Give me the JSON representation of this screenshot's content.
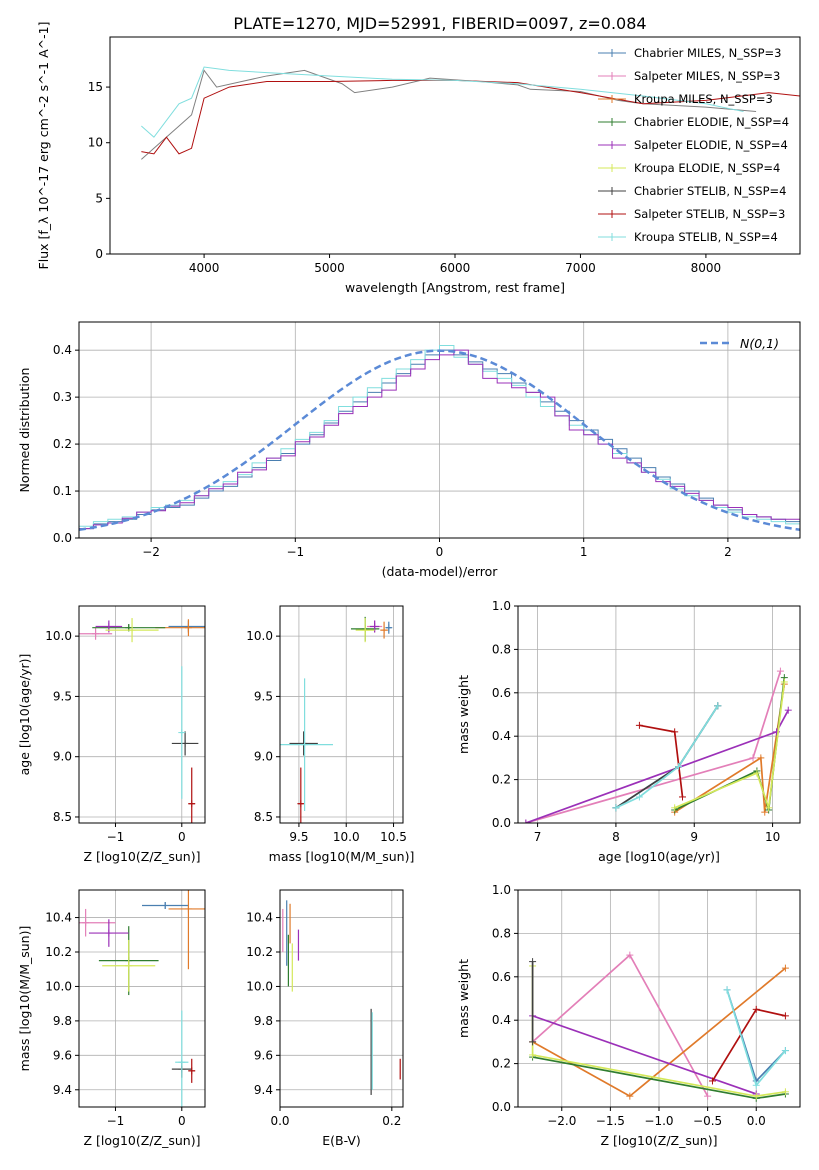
{
  "figure": {
    "title": "PLATE=1270, MJD=52991, FIBERID=0097, z=0.084"
  },
  "colors": {
    "Chabrier MILES": "#4a7fb0",
    "Salpeter MILES": "#e37fb8",
    "Kroupa MILES": "#e07a2a",
    "Chabrier ELODIE": "#2f7d2f",
    "Salpeter ELODIE": "#9b30b8",
    "Kroupa ELODIE": "#d4e85a",
    "Chabrier STELIB": "#404040",
    "Salpeter STELIB": "#b01010",
    "Kroupa STELIB": "#80dede",
    "data": "#808080",
    "normal": "#5b8ad6"
  },
  "chart_data": [
    {
      "type": "line",
      "xlabel": "wavelength [Angstrom, rest frame]",
      "ylabel": "Flux [f_λ 10^-17 erg cm^-2 s^-1 A^-1]",
      "xlim": [
        3250,
        8750
      ],
      "ylim": [
        0,
        19.5
      ],
      "xticks": [
        4000,
        5000,
        6000,
        7000,
        8000
      ],
      "yticks": [
        0,
        5,
        10,
        15
      ],
      "grid": false,
      "legend_position": "right",
      "legend": [
        "Chabrier MILES, N_SSP=3",
        "Salpeter MILES, N_SSP=3",
        "Kroupa MILES, N_SSP=3",
        "Chabrier ELODIE, N_SSP=4",
        "Salpeter ELODIE, N_SSP=4",
        "Kroupa ELODIE, N_SSP=4",
        "Chabrier STELIB, N_SSP=4",
        "Salpeter STELIB, N_SSP=3",
        "Kroupa STELIB, N_SSP=4"
      ],
      "series": [
        {
          "name": "data (gray)",
          "x": [
            3500,
            3700,
            3900,
            4000,
            4100,
            4300,
            4500,
            4800,
            5100,
            5200,
            5500,
            5800,
            6200,
            6500,
            6600,
            7000,
            7300,
            7500,
            8000,
            8400
          ],
          "y": [
            8.5,
            10.5,
            12.5,
            16.5,
            15.0,
            15.5,
            16.0,
            16.5,
            15.3,
            14.5,
            15.0,
            15.8,
            15.5,
            15.2,
            14.8,
            14.6,
            13.8,
            13.5,
            13.2,
            12.8
          ]
        },
        {
          "name": "Salpeter STELIB, N_SSP=3",
          "x": [
            3500,
            3600,
            3700,
            3800,
            3900,
            4000,
            4200,
            4500,
            5000,
            5500,
            6000,
            6500,
            7000,
            7500,
            8000,
            8500,
            8750
          ],
          "y": [
            9.2,
            9.0,
            10.5,
            9.0,
            9.5,
            14.0,
            15.0,
            15.5,
            15.5,
            15.6,
            15.6,
            15.4,
            14.5,
            13.5,
            13.8,
            14.5,
            14.2
          ]
        },
        {
          "name": "Kroupa STELIB, N_SSP=4",
          "x": [
            3500,
            3600,
            3700,
            3800,
            3900,
            4000,
            4200,
            4500,
            5000,
            5500,
            6000,
            6500,
            7000,
            7500,
            8000,
            8300
          ],
          "y": [
            11.5,
            10.5,
            12.0,
            13.5,
            14.0,
            16.8,
            16.5,
            16.3,
            16.0,
            15.7,
            15.6,
            15.3,
            14.8,
            14.2,
            13.5,
            12.8
          ]
        }
      ]
    },
    {
      "type": "step",
      "xlabel": "(data-model)/error",
      "ylabel": "Normed distribution",
      "xlim": [
        -2.5,
        2.5
      ],
      "ylim": [
        0,
        0.46
      ],
      "xticks": [
        -2,
        -1,
        0,
        1,
        2
      ],
      "yticks": [
        0.0,
        0.1,
        0.2,
        0.3,
        0.4
      ],
      "grid": true,
      "legend_position": "top-right",
      "legend": [
        "N(0,1)"
      ],
      "bin_width": 0.1,
      "bins_from": -2.5,
      "series": [
        {
          "name": "Chabrier MILES",
          "values": [
            0.02,
            0.03,
            0.035,
            0.04,
            0.05,
            0.06,
            0.065,
            0.07,
            0.085,
            0.1,
            0.11,
            0.13,
            0.15,
            0.165,
            0.18,
            0.2,
            0.22,
            0.245,
            0.27,
            0.29,
            0.31,
            0.33,
            0.35,
            0.37,
            0.39,
            0.4,
            0.39,
            0.375,
            0.36,
            0.35,
            0.33,
            0.31,
            0.29,
            0.27,
            0.25,
            0.23,
            0.21,
            0.19,
            0.17,
            0.15,
            0.13,
            0.115,
            0.1,
            0.085,
            0.07,
            0.06,
            0.05,
            0.045,
            0.04,
            0.035
          ]
        },
        {
          "name": "Kroupa STELIB",
          "values": [
            0.025,
            0.035,
            0.04,
            0.045,
            0.055,
            0.065,
            0.07,
            0.08,
            0.09,
            0.11,
            0.12,
            0.135,
            0.16,
            0.17,
            0.19,
            0.21,
            0.225,
            0.25,
            0.28,
            0.3,
            0.32,
            0.34,
            0.36,
            0.38,
            0.4,
            0.41,
            0.385,
            0.37,
            0.355,
            0.34,
            0.325,
            0.3,
            0.28,
            0.26,
            0.24,
            0.22,
            0.2,
            0.18,
            0.16,
            0.14,
            0.125,
            0.105,
            0.09,
            0.08,
            0.065,
            0.055,
            0.045,
            0.04,
            0.035,
            0.03
          ]
        },
        {
          "name": "Salpeter ELODIE",
          "values": [
            0.02,
            0.028,
            0.032,
            0.042,
            0.055,
            0.058,
            0.068,
            0.075,
            0.09,
            0.105,
            0.115,
            0.14,
            0.145,
            0.17,
            0.175,
            0.205,
            0.215,
            0.24,
            0.265,
            0.28,
            0.3,
            0.315,
            0.345,
            0.36,
            0.38,
            0.39,
            0.4,
            0.37,
            0.34,
            0.33,
            0.32,
            0.31,
            0.3,
            0.26,
            0.23,
            0.22,
            0.2,
            0.17,
            0.16,
            0.14,
            0.12,
            0.11,
            0.095,
            0.08,
            0.07,
            0.065,
            0.05,
            0.045,
            0.04,
            0.04
          ]
        }
      ],
      "normal_curve": {
        "name": "N(0,1)",
        "mean": 0,
        "sigma": 1
      }
    },
    {
      "type": "scatter",
      "title": "",
      "xlabel": "Z [log10(Z/Z_sun)]",
      "ylabel": "age  [log10(age/yr)]",
      "xlim": [
        -1.55,
        0.35
      ],
      "ylim": [
        8.45,
        10.25
      ],
      "xticks": [
        -1,
        0
      ],
      "yticks": [
        8.5,
        9.0,
        9.5,
        10.0
      ],
      "grid": true,
      "errorbars": [
        {
          "series": "Chabrier MILES",
          "x": 0.1,
          "y": 10.08,
          "xerr": 0.3,
          "yerr": 0.05
        },
        {
          "series": "Salpeter MILES",
          "x": -1.3,
          "y": 10.02,
          "xerr": 0.25,
          "yerr": 0.05
        },
        {
          "series": "Kroupa MILES",
          "x": 0.1,
          "y": 10.07,
          "xerr": 0.5,
          "yerr": 0.07
        },
        {
          "series": "Chabrier ELODIE",
          "x": -0.8,
          "y": 10.07,
          "xerr": 0.55,
          "yerr": 0.03
        },
        {
          "series": "Salpeter ELODIE",
          "x": -1.1,
          "y": 10.08,
          "xerr": 0.2,
          "yerr": 0.05
        },
        {
          "series": "Kroupa ELODIE",
          "x": -0.75,
          "y": 10.05,
          "xerr": 0.4,
          "yerr": 0.1
        },
        {
          "series": "Chabrier STELIB",
          "x": 0.05,
          "y": 9.11,
          "xerr": 0.2,
          "yerr": 0.1
        },
        {
          "series": "Salpeter STELIB",
          "x": 0.15,
          "y": 8.61,
          "xerr": 0.05,
          "yerr": 0.3
        },
        {
          "series": "Kroupa STELIB",
          "x": 0.0,
          "y": 9.2,
          "xerr": 0.02,
          "yerr": 0.55
        }
      ]
    },
    {
      "type": "scatter",
      "xlabel": "mass [log10(M/M_sun)]",
      "ylabel": "",
      "xlim": [
        9.3,
        10.6
      ],
      "ylim": [
        8.45,
        10.25
      ],
      "xticks": [
        9.5,
        10.0,
        10.5
      ],
      "yticks": [
        8.5,
        9.0,
        9.5,
        10.0
      ],
      "grid": true,
      "errorbars": [
        {
          "series": "Chabrier MILES",
          "x": 10.45,
          "y": 10.07,
          "xerr": 0.03,
          "yerr": 0.05
        },
        {
          "series": "Salpeter MILES",
          "x": 10.3,
          "y": 10.08,
          "xerr": 0.08,
          "yerr": 0.05
        },
        {
          "series": "Kroupa MILES",
          "x": 10.4,
          "y": 10.05,
          "xerr": 0.04,
          "yerr": 0.07
        },
        {
          "series": "Chabrier ELODIE",
          "x": 10.2,
          "y": 10.06,
          "xerr": 0.15,
          "yerr": 0.1
        },
        {
          "series": "Salpeter ELODIE",
          "x": 10.3,
          "y": 10.08,
          "xerr": 0.05,
          "yerr": 0.05
        },
        {
          "series": "Kroupa ELODIE",
          "x": 10.2,
          "y": 10.05,
          "xerr": 0.1,
          "yerr": 0.1
        },
        {
          "series": "Chabrier STELIB",
          "x": 9.55,
          "y": 9.11,
          "xerr": 0.15,
          "yerr": 0.1
        },
        {
          "series": "Salpeter STELIB",
          "x": 9.52,
          "y": 8.61,
          "xerr": 0.03,
          "yerr": 0.3
        },
        {
          "series": "Kroupa STELIB",
          "x": 9.56,
          "y": 9.1,
          "xerr": 0.3,
          "yerr": 0.55
        }
      ]
    },
    {
      "type": "line",
      "xlabel": "age  [log10(age/yr)]",
      "ylabel": "mass weight",
      "xlim": [
        6.75,
        10.35
      ],
      "ylim": [
        0,
        1
      ],
      "xticks": [
        7,
        8,
        9,
        10
      ],
      "yticks": [
        0.0,
        0.2,
        0.4,
        0.6,
        0.8,
        1.0
      ],
      "grid": true,
      "series": [
        {
          "name": "Chabrier MILES",
          "x": [
            8.0,
            8.8,
            9.3
          ],
          "y": [
            0.07,
            0.26,
            0.54
          ]
        },
        {
          "name": "Salpeter MILES",
          "x": [
            6.85,
            9.75,
            10.1
          ],
          "y": [
            0.0,
            0.3,
            0.7
          ]
        },
        {
          "name": "Kroupa MILES",
          "x": [
            8.75,
            9.85,
            9.9,
            10.15
          ],
          "y": [
            0.05,
            0.3,
            0.05,
            0.64
          ]
        },
        {
          "name": "Chabrier ELODIE",
          "x": [
            8.75,
            9.8,
            9.95,
            10.15
          ],
          "y": [
            0.06,
            0.24,
            0.06,
            0.67
          ]
        },
        {
          "name": "Salpeter ELODIE",
          "x": [
            6.85,
            10.05,
            10.2
          ],
          "y": [
            0.0,
            0.42,
            0.52
          ]
        },
        {
          "name": "Kroupa ELODIE",
          "x": [
            8.75,
            9.8,
            9.95,
            10.15
          ],
          "y": [
            0.07,
            0.23,
            0.07,
            0.65
          ]
        },
        {
          "name": "Chabrier STELIB",
          "x": [
            8.0,
            8.8,
            9.3
          ],
          "y": [
            0.07,
            0.26,
            0.54
          ]
        },
        {
          "name": "Salpeter STELIB",
          "x": [
            8.3,
            8.75,
            8.85
          ],
          "y": [
            0.45,
            0.42,
            0.12
          ]
        },
        {
          "name": "Kroupa STELIB",
          "x": [
            8.0,
            8.3,
            8.8,
            9.3
          ],
          "y": [
            0.07,
            0.12,
            0.26,
            0.54
          ]
        }
      ]
    },
    {
      "type": "scatter",
      "xlabel": "Z [log10(Z/Z_sun)]",
      "ylabel": "mass [log10(M/M_sun)]",
      "xlim": [
        -1.55,
        0.35
      ],
      "ylim": [
        9.3,
        10.56
      ],
      "xticks": [
        -1,
        0
      ],
      "yticks": [
        9.4,
        9.6,
        9.8,
        10.0,
        10.2,
        10.4
      ],
      "grid": true,
      "errorbars": [
        {
          "series": "Chabrier MILES",
          "x": -0.25,
          "y": 10.47,
          "xerr": 0.35,
          "yerr": 0.02
        },
        {
          "series": "Salpeter MILES",
          "x": -1.45,
          "y": 10.37,
          "xerr": 0.45,
          "yerr": 0.08
        },
        {
          "series": "Kroupa MILES",
          "x": 0.1,
          "y": 10.45,
          "xerr": 0.3,
          "yerr": 0.35
        },
        {
          "series": "Chabrier ELODIE",
          "x": -0.8,
          "y": 10.15,
          "xerr": 0.45,
          "yerr": 0.2
        },
        {
          "series": "Salpeter ELODIE",
          "x": -1.1,
          "y": 10.31,
          "xerr": 0.3,
          "yerr": 0.08
        },
        {
          "series": "Kroupa ELODIE",
          "x": -0.8,
          "y": 10.12,
          "xerr": 0.4,
          "yerr": 0.15
        },
        {
          "series": "Chabrier STELIB",
          "x": 0.0,
          "y": 9.52,
          "xerr": 0.15,
          "yerr": 0.05
        },
        {
          "series": "Salpeter STELIB",
          "x": 0.15,
          "y": 9.51,
          "xerr": 0.05,
          "yerr": 0.07
        },
        {
          "series": "Kroupa STELIB",
          "x": 0.0,
          "y": 9.56,
          "xerr": 0.1,
          "yerr": 0.3
        }
      ]
    },
    {
      "type": "scatter",
      "xlabel": "E(B-V)",
      "ylabel": "",
      "xlim": [
        0,
        0.22
      ],
      "ylim": [
        9.3,
        10.56
      ],
      "xticks": [
        0.0,
        0.2
      ],
      "yticks": [
        9.4,
        9.6,
        9.8,
        10.0,
        10.2,
        10.4
      ],
      "grid": true,
      "vbars": [
        {
          "series": "Chabrier MILES",
          "x": 0.012,
          "ylo": 10.12,
          "yhi": 10.5
        },
        {
          "series": "Salpeter MILES",
          "x": 0.005,
          "ylo": 10.2,
          "yhi": 10.45
        },
        {
          "series": "Kroupa MILES",
          "x": 0.018,
          "ylo": 10.25,
          "yhi": 10.48
        },
        {
          "series": "Chabrier ELODIE",
          "x": 0.015,
          "ylo": 10.0,
          "yhi": 10.3
        },
        {
          "series": "Salpeter ELODIE",
          "x": 0.033,
          "ylo": 10.15,
          "yhi": 10.33
        },
        {
          "series": "Kroupa ELODIE",
          "x": 0.022,
          "ylo": 9.97,
          "yhi": 10.25
        },
        {
          "series": "Chabrier STELIB",
          "x": 0.163,
          "ylo": 9.37,
          "yhi": 9.87
        },
        {
          "series": "Salpeter STELIB",
          "x": 0.215,
          "ylo": 9.46,
          "yhi": 9.58
        },
        {
          "series": "Kroupa STELIB",
          "x": 0.165,
          "ylo": 9.4,
          "yhi": 9.85
        }
      ]
    },
    {
      "type": "line",
      "xlabel": "Z [log10(Z/Z_sun)]",
      "ylabel": "mass weight",
      "xlim": [
        -2.45,
        0.45
      ],
      "ylim": [
        0,
        1
      ],
      "xticks": [
        -2.0,
        -1.5,
        -1.0,
        -0.5,
        0.0
      ],
      "yticks": [
        0.0,
        0.2,
        0.4,
        0.6,
        0.8,
        1.0
      ],
      "grid": true,
      "series": [
        {
          "name": "Chabrier MILES",
          "x": [
            -0.3,
            0.0,
            0.3
          ],
          "y": [
            0.54,
            0.12,
            0.26
          ]
        },
        {
          "name": "Salpeter MILES",
          "x": [
            -2.3,
            -1.3,
            -0.5
          ],
          "y": [
            0.3,
            0.7,
            0.05
          ]
        },
        {
          "name": "Kroupa MILES",
          "x": [
            -2.3,
            -1.3,
            0.3
          ],
          "y": [
            0.3,
            0.05,
            0.64
          ]
        },
        {
          "name": "Chabrier ELODIE",
          "x": [
            -2.3,
            0.0,
            0.3
          ],
          "y": [
            0.23,
            0.04,
            0.06
          ]
        },
        {
          "name": "Salpeter ELODIE",
          "x": [
            -2.3,
            0.0
          ],
          "y": [
            0.42,
            0.06
          ]
        },
        {
          "name": "Kroupa ELODIE",
          "x": [
            -2.3,
            -2.3,
            0.0,
            0.3
          ],
          "y": [
            0.65,
            0.24,
            0.05,
            0.07
          ]
        },
        {
          "name": "Chabrier STELIB",
          "x": [
            -2.3,
            -2.3
          ],
          "y": [
            0.67,
            0.3
          ]
        },
        {
          "name": "Salpeter STELIB",
          "x": [
            -0.45,
            0.0,
            0.3
          ],
          "y": [
            0.12,
            0.45,
            0.42
          ]
        },
        {
          "name": "Kroupa STELIB",
          "x": [
            -0.3,
            0.0,
            0.3
          ],
          "y": [
            0.54,
            0.1,
            0.26
          ]
        }
      ]
    }
  ]
}
